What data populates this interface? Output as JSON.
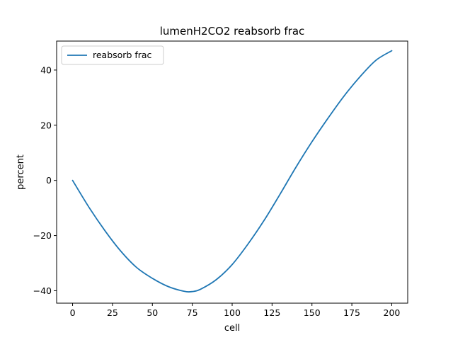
{
  "chart_data": {
    "type": "line",
    "title": "lumenH2CO2 reabsorb frac",
    "xlabel": "cell",
    "ylabel": "percent",
    "xlim": [
      -10,
      210
    ],
    "ylim": [
      -44.5,
      50.5
    ],
    "xticks": [
      0,
      25,
      50,
      75,
      100,
      125,
      150,
      175,
      200
    ],
    "yticks": [
      -40,
      -20,
      0,
      20,
      40
    ],
    "xtick_labels": [
      "0",
      "25",
      "50",
      "75",
      "100",
      "125",
      "150",
      "175",
      "200"
    ],
    "ytick_labels": [
      "−40",
      "−20",
      "0",
      "20",
      "40"
    ],
    "grid": false,
    "legend_position": "upper-left",
    "series": [
      {
        "name": "reabsorb frac",
        "color": "#1f77b4",
        "x": [
          0,
          10,
          20,
          30,
          40,
          50,
          60,
          70,
          75,
          80,
          90,
          100,
          110,
          120,
          130,
          140,
          150,
          160,
          170,
          180,
          190,
          200
        ],
        "y": [
          0,
          -9.5,
          -18,
          -25.5,
          -31.5,
          -35.5,
          -38.5,
          -40.2,
          -40.3,
          -39.5,
          -36,
          -30.5,
          -23,
          -14.5,
          -5,
          4.8,
          14,
          22.5,
          30.5,
          37.5,
          43.5,
          47
        ]
      }
    ]
  }
}
